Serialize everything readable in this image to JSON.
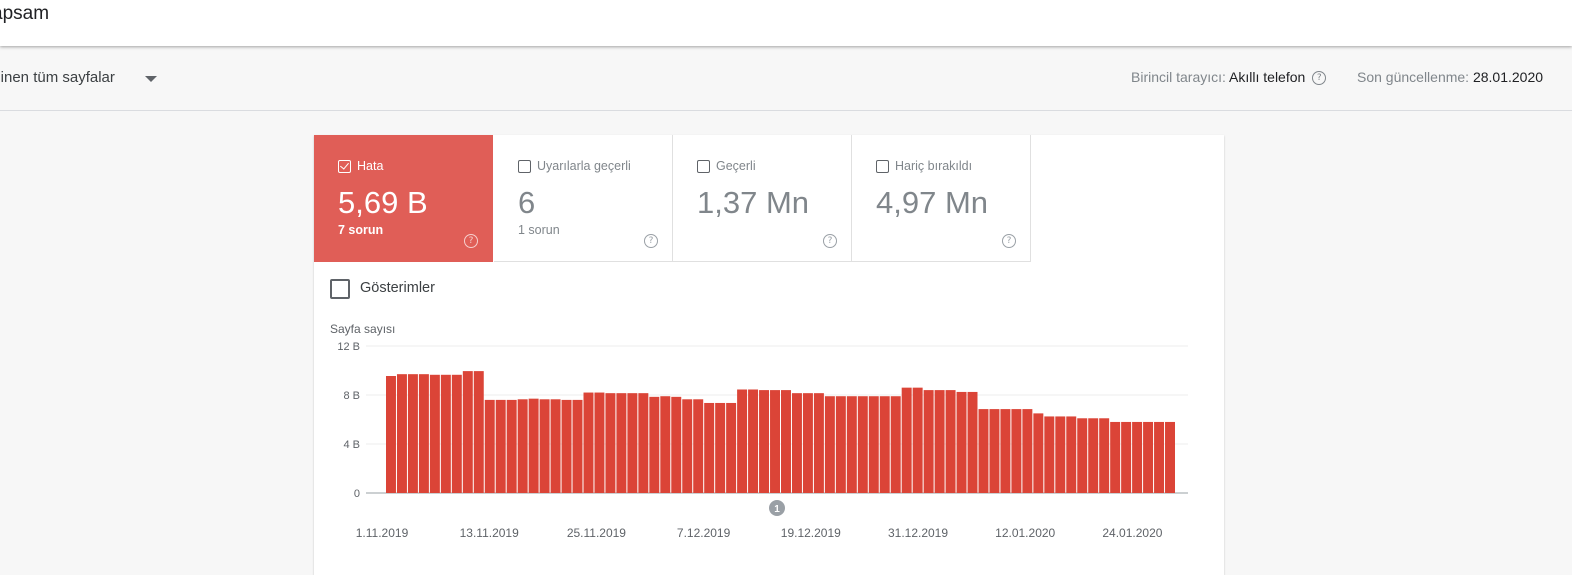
{
  "header": {
    "title": "apsam"
  },
  "filter": {
    "selected": "ilinen tüm sayfalar"
  },
  "meta": {
    "crawler_label": "Birincil tarayıcı:",
    "crawler_value": "Akıllı telefon",
    "updated_label": "Son güncellenme:",
    "updated_value": "28.01.2020"
  },
  "tiles": [
    {
      "label": "Hata",
      "value": "5,69 B",
      "sub": "7 sorun",
      "checked": true
    },
    {
      "label": "Uyarılarla geçerli",
      "value": "6",
      "sub": "1 sorun",
      "checked": false
    },
    {
      "label": "Geçerli",
      "value": "1,37 Mn",
      "sub": "",
      "checked": false
    },
    {
      "label": "Hariç bırakıldı",
      "value": "4,97 Mn",
      "sub": "",
      "checked": false
    }
  ],
  "impressions": {
    "label": "Gösterimler",
    "checked": false
  },
  "chart_data": {
    "type": "bar",
    "ylabel": "Sayfa sayısı",
    "ylim": [
      0,
      12000
    ],
    "yticks": [
      {
        "value": 0,
        "label": "0"
      },
      {
        "value": 4000,
        "label": "4 B"
      },
      {
        "value": 8000,
        "label": "8 B"
      },
      {
        "value": 12000,
        "label": "12 B"
      }
    ],
    "xticks": [
      "1.11.2019",
      "13.11.2019",
      "25.11.2019",
      "7.12.2019",
      "19.12.2019",
      "31.12.2019",
      "12.01.2020",
      "24.01.2020"
    ],
    "color": "#db4437",
    "grid": true,
    "annotation": {
      "label": "1",
      "date": "14.12.2019"
    },
    "series": [
      {
        "values": [
          9550,
          9700,
          9700,
          9700,
          9650,
          9650,
          9650,
          9950,
          9950,
          7600,
          7600,
          7600,
          7650,
          7700,
          7650,
          7650,
          7600,
          7600,
          8200,
          8200,
          8150,
          8150,
          8150,
          8150,
          7850,
          7900,
          7850,
          7650,
          7650,
          7350,
          7350,
          7350,
          8450,
          8450,
          8400,
          8400,
          8400,
          8150,
          8150,
          8150,
          7900,
          7900,
          7900,
          7900,
          7900,
          7900,
          7900,
          8600,
          8600,
          8400,
          8400,
          8400,
          8250,
          8250,
          6850,
          6850,
          6850,
          6850,
          6850,
          6500,
          6250,
          6250,
          6250,
          6100,
          6100,
          6100,
          5800,
          5800,
          5800,
          5800,
          5800,
          5800
        ]
      }
    ]
  }
}
